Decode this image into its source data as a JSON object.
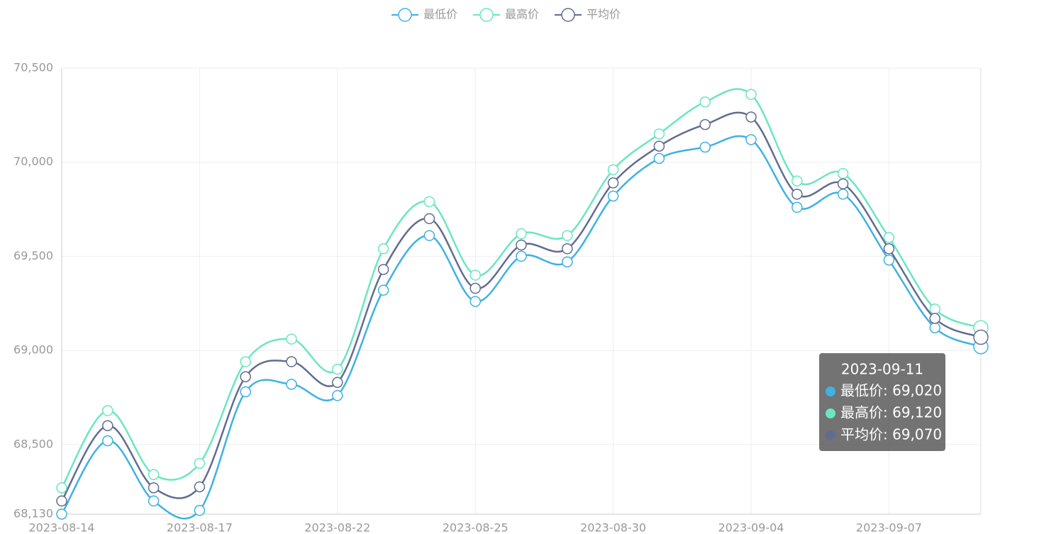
{
  "chart_data": {
    "type": "line",
    "categories": [
      "2023-08-14",
      null,
      null,
      "2023-08-17",
      null,
      null,
      "2023-08-22",
      null,
      null,
      "2023-08-25",
      null,
      null,
      "2023-08-30",
      null,
      null,
      "2023-09-04",
      null,
      null,
      "2023-09-07",
      null,
      "2023-09-11"
    ],
    "series": [
      {
        "name": "最低价",
        "color": "#3fb1e3",
        "values": [
          68130,
          68520,
          68200,
          68150,
          68780,
          68820,
          68760,
          69320,
          69610,
          69260,
          69500,
          69470,
          69820,
          70020,
          70080,
          70120,
          69760,
          69830,
          69480,
          69120,
          69020
        ]
      },
      {
        "name": "最高价",
        "color": "#6be6c1",
        "values": [
          68270,
          68680,
          68340,
          68400,
          68940,
          69060,
          68900,
          69540,
          69790,
          69400,
          69620,
          69610,
          69960,
          70150,
          70320,
          70360,
          69900,
          69940,
          69600,
          69220,
          69120
        ]
      },
      {
        "name": "平均价",
        "color": "#626c91",
        "values": [
          68200,
          68600,
          68270,
          68275,
          68860,
          68940,
          68830,
          69430,
          69700,
          69330,
          69560,
          69540,
          69890,
          70085,
          70200,
          70240,
          69830,
          69885,
          69540,
          69170,
          69070
        ]
      }
    ],
    "ylim": [
      68130,
      70500
    ],
    "yticks": [
      {
        "value": 68130,
        "label": "68,130"
      },
      {
        "value": 68500,
        "label": "68,500"
      },
      {
        "value": 69000,
        "label": "69,000"
      },
      {
        "value": 69500,
        "label": "69,500"
      },
      {
        "value": 70000,
        "label": "70,000"
      },
      {
        "value": 70500,
        "label": "70,500"
      }
    ],
    "grid": true,
    "smooth": true,
    "tooltip": {
      "rows": [
        "最低价: 69,020",
        "最高价: 69,120",
        "平均价: 69,070"
      ]
    }
  }
}
